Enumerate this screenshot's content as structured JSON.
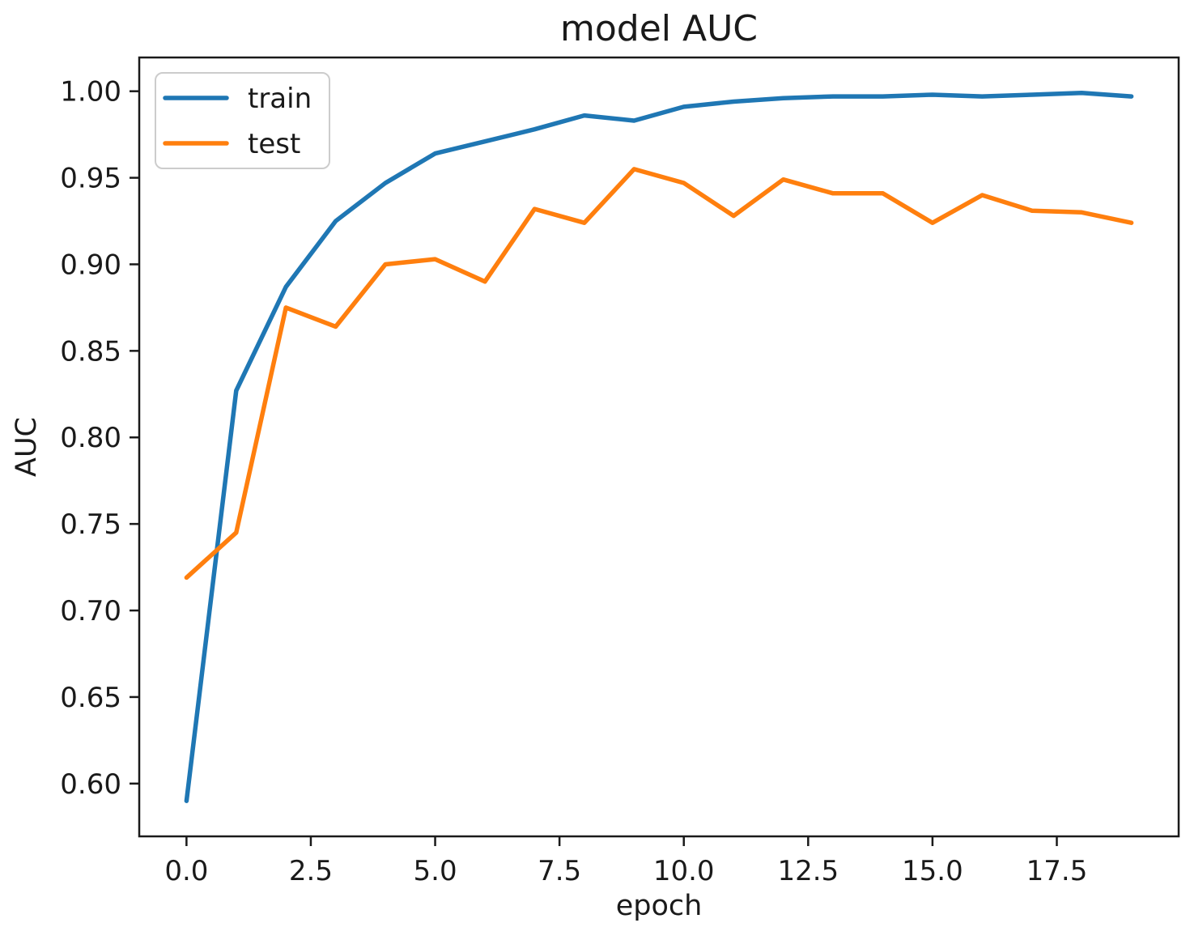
{
  "figure": {
    "title": "model AUC"
  },
  "chart_data": {
    "type": "line",
    "title": "model AUC",
    "xlabel": "epoch",
    "ylabel": "AUC",
    "grid": false,
    "legend_position": "upper left",
    "xlim": [
      -0.95,
      19.95
    ],
    "ylim": [
      0.5695,
      1.0195
    ],
    "x": [
      0,
      1,
      2,
      3,
      4,
      5,
      6,
      7,
      8,
      9,
      10,
      11,
      12,
      13,
      14,
      15,
      16,
      17,
      18,
      19
    ],
    "series": [
      {
        "name": "train",
        "color": "#1f77b4",
        "values": [
          0.59,
          0.827,
          0.887,
          0.925,
          0.947,
          0.964,
          0.971,
          0.978,
          0.986,
          0.983,
          0.991,
          0.994,
          0.996,
          0.997,
          0.997,
          0.998,
          0.997,
          0.998,
          0.999,
          0.997
        ]
      },
      {
        "name": "test",
        "color": "#ff7f0e",
        "values": [
          0.719,
          0.745,
          0.875,
          0.864,
          0.9,
          0.903,
          0.89,
          0.932,
          0.924,
          0.955,
          0.947,
          0.928,
          0.949,
          0.941,
          0.941,
          0.924,
          0.94,
          0.931,
          0.93,
          0.924
        ]
      }
    ],
    "x_ticks": {
      "values": [
        0,
        2.5,
        5,
        7.5,
        10,
        12.5,
        15,
        17.5
      ],
      "labels": [
        "0.0",
        "2.5",
        "5.0",
        "7.5",
        "10.0",
        "12.5",
        "15.0",
        "17.5"
      ]
    },
    "y_ticks": {
      "values": [
        0.6,
        0.65,
        0.7,
        0.75,
        0.8,
        0.85,
        0.9,
        0.95,
        1.0
      ],
      "labels": [
        "0.60",
        "0.65",
        "0.70",
        "0.75",
        "0.80",
        "0.85",
        "0.90",
        "0.95",
        "1.00"
      ]
    }
  }
}
